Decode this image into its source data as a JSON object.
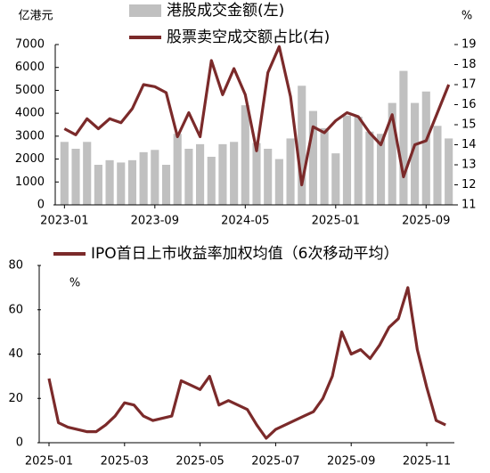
{
  "chart_data": [
    {
      "type": "combo",
      "ylabel": "亿港元",
      "y2label": "%",
      "categories": [
        "2023-01",
        null,
        null,
        null,
        null,
        null,
        null,
        null,
        "2023-09",
        null,
        null,
        null,
        null,
        null,
        null,
        null,
        "2024-05",
        null,
        null,
        null,
        null,
        null,
        null,
        null,
        "2025-01",
        null,
        null,
        null,
        null,
        null,
        null,
        null,
        "2025-09",
        null,
        null
      ],
      "series": [
        {
          "name": "港股成交金额(左)",
          "type": "bar",
          "color": "#c0c0c0",
          "values": [
            2750,
            2450,
            2750,
            1750,
            1950,
            1850,
            1950,
            2300,
            2400,
            1750,
            3100,
            2450,
            2650,
            2100,
            2650,
            2750,
            4350,
            2700,
            2450,
            2000,
            2900,
            5200,
            4100,
            3350,
            2250,
            3900,
            3850,
            3200,
            3100,
            4450,
            5850,
            4450,
            4950,
            3450,
            2900
          ]
        },
        {
          "name": "股票卖空成交额占比(右)",
          "type": "line",
          "axis": "y2",
          "color": "#7b2a2a",
          "values": [
            14.8,
            14.5,
            15.3,
            14.8,
            15.3,
            15.1,
            15.8,
            17.0,
            16.9,
            16.6,
            14.4,
            15.6,
            14.4,
            18.2,
            16.5,
            17.8,
            16.5,
            13.7,
            17.6,
            18.9,
            16.4,
            12.0,
            14.9,
            14.6,
            15.2,
            15.6,
            15.4,
            14.6,
            14.0,
            15.5,
            12.4,
            14.0,
            14.2,
            15.6,
            17.0
          ]
        }
      ],
      "ylim": [
        0,
        7000
      ],
      "yticks": [
        0,
        1000,
        2000,
        3000,
        4000,
        5000,
        6000,
        7000
      ],
      "y2lim": [
        11,
        19
      ],
      "y2ticks": [
        11,
        12,
        13,
        14,
        15,
        16,
        17,
        18,
        19
      ]
    },
    {
      "type": "line",
      "ylabel": "%",
      "categories": [
        "2025-01",
        null,
        null,
        null,
        null,
        null,
        null,
        null,
        "2025-03",
        null,
        null,
        null,
        null,
        null,
        null,
        null,
        "2025-05",
        null,
        null,
        null,
        null,
        null,
        null,
        null,
        "2025-07",
        null,
        null,
        null,
        null,
        null,
        null,
        null,
        "2025-09",
        null,
        null,
        null,
        null,
        null,
        null,
        null,
        "2025-11",
        null,
        null
      ],
      "series": [
        {
          "name": "IPO首日上市收益率加权均值（6次移动平均）",
          "color": "#7b2a2a",
          "values": [
            29,
            9,
            7,
            6,
            5,
            5,
            8,
            12,
            18,
            17,
            12,
            10,
            11,
            12,
            28,
            26,
            24,
            30,
            17,
            19,
            17,
            15,
            8,
            2,
            6,
            8,
            10,
            12,
            14,
            20,
            30,
            50,
            40,
            42,
            38,
            44,
            52,
            56,
            70,
            42,
            25,
            10,
            8
          ]
        }
      ],
      "ylim": [
        0,
        80
      ],
      "yticks": [
        0,
        20,
        40,
        60,
        80
      ]
    }
  ]
}
